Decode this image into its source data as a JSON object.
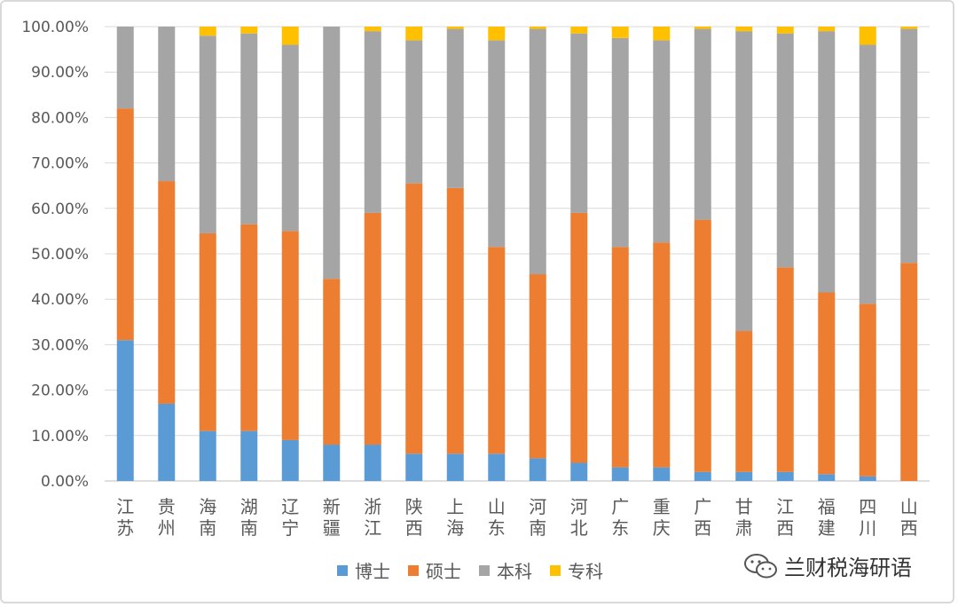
{
  "chart_data": {
    "type": "bar",
    "stacked": true,
    "categories": [
      "江苏",
      "贵州",
      "海南",
      "湖南",
      "辽宁",
      "新疆",
      "浙江",
      "陕西",
      "上海",
      "山东",
      "河南",
      "河北",
      "广东",
      "重庆",
      "广西",
      "甘肃",
      "江西",
      "福建",
      "四川",
      "山西"
    ],
    "series": [
      {
        "name": "博士",
        "color": "#5b9bd5",
        "values": [
          31,
          17,
          11,
          11,
          9,
          8,
          8,
          6,
          6,
          6,
          5,
          4,
          3,
          3,
          2,
          2,
          2,
          1.5,
          1,
          0
        ]
      },
      {
        "name": "硕士",
        "color": "#ed7d31",
        "values": [
          51,
          49,
          43.5,
          45.5,
          46,
          36.5,
          51,
          59.5,
          58.5,
          45.5,
          40.5,
          55,
          48.5,
          49.5,
          55.5,
          31,
          45,
          40,
          38,
          48
        ]
      },
      {
        "name": "本科",
        "color": "#a5a5a5",
        "values": [
          18,
          34,
          43.5,
          42,
          41,
          55.5,
          40,
          31.5,
          35,
          45.5,
          54,
          39.5,
          46,
          44.5,
          42,
          66,
          51.5,
          57.5,
          57,
          51.5
        ]
      },
      {
        "name": "专科",
        "color": "#ffc000",
        "values": [
          0,
          0,
          2,
          1.5,
          4,
          0,
          1,
          3,
          0.5,
          3,
          0.5,
          1.5,
          2.5,
          3,
          0.5,
          1,
          1.5,
          1,
          4,
          0.5
        ]
      }
    ],
    "ylim": [
      0,
      100
    ],
    "yticks": [
      "0.00%",
      "10.00%",
      "20.00%",
      "30.00%",
      "40.00%",
      "50.00%",
      "60.00%",
      "70.00%",
      "80.00%",
      "90.00%",
      "100.00%"
    ],
    "grid": true,
    "legend_position": "bottom"
  },
  "watermark": {
    "text": "兰财税海研语",
    "icon": "wechat-icon"
  }
}
